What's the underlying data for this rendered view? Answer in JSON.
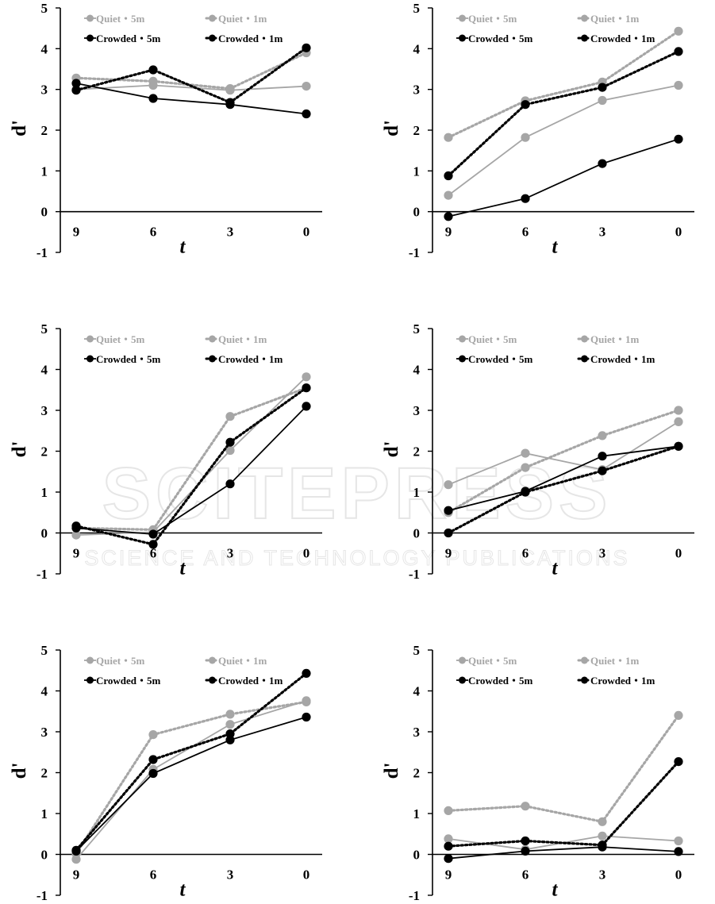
{
  "watermark": {
    "main": "SCITEPRESS",
    "sub": "SCIENCE AND TECHNOLOGY PUBLICATIONS"
  },
  "chart_data": [
    {
      "type": "line",
      "xlabel": "t",
      "ylabel": "d'",
      "categories": [
        "9",
        "6",
        "3",
        "0"
      ],
      "ylim": [
        -1,
        5
      ],
      "yticks": [
        "-1",
        "0",
        "1",
        "2",
        "3",
        "4",
        "5"
      ],
      "series": [
        {
          "name": "Quiet・5m",
          "values": [
            3.0,
            3.1,
            2.98,
            3.08
          ],
          "color": "#a6a6a6",
          "style": "solid"
        },
        {
          "name": "Quiet・1m",
          "values": [
            3.28,
            3.2,
            3.02,
            3.9
          ],
          "color": "#a6a6a6",
          "style": "dotted"
        },
        {
          "name": "Crowded・5m",
          "values": [
            3.15,
            2.78,
            2.63,
            2.4
          ],
          "color": "#000000",
          "style": "solid"
        },
        {
          "name": "Crowded・1m",
          "values": [
            2.98,
            3.48,
            2.68,
            4.02
          ],
          "color": "#000000",
          "style": "dotted"
        }
      ]
    },
    {
      "type": "line",
      "xlabel": "t",
      "ylabel": "d'",
      "categories": [
        "9",
        "6",
        "3",
        "0"
      ],
      "ylim": [
        -1,
        5
      ],
      "yticks": [
        "-1",
        "0",
        "1",
        "2",
        "3",
        "4",
        "5"
      ],
      "series": [
        {
          "name": "Quiet・5m",
          "values": [
            0.4,
            1.82,
            2.73,
            3.1
          ],
          "color": "#a6a6a6",
          "style": "solid"
        },
        {
          "name": "Quiet・1m",
          "values": [
            1.82,
            2.72,
            3.18,
            4.43
          ],
          "color": "#a6a6a6",
          "style": "dotted"
        },
        {
          "name": "Crowded・5m",
          "values": [
            -0.12,
            0.32,
            1.18,
            1.78
          ],
          "color": "#000000",
          "style": "solid"
        },
        {
          "name": "Crowded・1m",
          "values": [
            0.88,
            2.63,
            3.05,
            3.93
          ],
          "color": "#000000",
          "style": "dotted"
        }
      ]
    },
    {
      "type": "line",
      "xlabel": "t",
      "ylabel": "d'",
      "categories": [
        "9",
        "6",
        "3",
        "0"
      ],
      "ylim": [
        -1,
        5
      ],
      "yticks": [
        "-1",
        "0",
        "1",
        "2",
        "3",
        "4",
        "5"
      ],
      "series": [
        {
          "name": "Quiet・5m",
          "values": [
            -0.05,
            0.02,
            2.02,
            3.82
          ],
          "color": "#a6a6a6",
          "style": "solid"
        },
        {
          "name": "Quiet・1m",
          "values": [
            0.12,
            0.08,
            2.85,
            3.55
          ],
          "color": "#a6a6a6",
          "style": "dotted"
        },
        {
          "name": "Crowded・5m",
          "values": [
            0.12,
            -0.03,
            1.2,
            3.1
          ],
          "color": "#000000",
          "style": "solid"
        },
        {
          "name": "Crowded・1m",
          "values": [
            0.17,
            -0.28,
            2.22,
            3.55
          ],
          "color": "#000000",
          "style": "dotted"
        }
      ]
    },
    {
      "type": "line",
      "xlabel": "t",
      "ylabel": "d'",
      "categories": [
        "9",
        "6",
        "3",
        "0"
      ],
      "ylim": [
        -1,
        5
      ],
      "yticks": [
        "-1",
        "0",
        "1",
        "2",
        "3",
        "4",
        "5"
      ],
      "series": [
        {
          "name": "Quiet・5m",
          "values": [
            1.18,
            1.95,
            1.55,
            2.72
          ],
          "color": "#a6a6a6",
          "style": "solid"
        },
        {
          "name": "Quiet・1m",
          "values": [
            0.5,
            1.6,
            2.38,
            3.0
          ],
          "color": "#a6a6a6",
          "style": "dotted"
        },
        {
          "name": "Crowded・5m",
          "values": [
            0.55,
            1.02,
            1.88,
            2.12
          ],
          "color": "#000000",
          "style": "solid"
        },
        {
          "name": "Crowded・1m",
          "values": [
            0.0,
            1.0,
            1.52,
            2.12
          ],
          "color": "#000000",
          "style": "dotted"
        }
      ]
    },
    {
      "type": "line",
      "xlabel": "t",
      "ylabel": "d'",
      "categories": [
        "9",
        "6",
        "3",
        "0"
      ],
      "ylim": [
        -1,
        5
      ],
      "yticks": [
        "-1",
        "0",
        "1",
        "2",
        "3",
        "4",
        "5"
      ],
      "series": [
        {
          "name": "Quiet・5m",
          "values": [
            -0.12,
            2.08,
            3.18,
            3.76
          ],
          "color": "#a6a6a6",
          "style": "solid"
        },
        {
          "name": "Quiet・1m",
          "values": [
            0.02,
            2.93,
            3.43,
            3.73
          ],
          "color": "#a6a6a6",
          "style": "dotted"
        },
        {
          "name": "Crowded・5m",
          "values": [
            0.08,
            1.98,
            2.8,
            3.36
          ],
          "color": "#000000",
          "style": "solid"
        },
        {
          "name": "Crowded・1m",
          "values": [
            0.1,
            2.32,
            2.95,
            4.43
          ],
          "color": "#000000",
          "style": "dotted"
        }
      ]
    },
    {
      "type": "line",
      "xlabel": "t",
      "ylabel": "d'",
      "categories": [
        "9",
        "6",
        "3",
        "0"
      ],
      "ylim": [
        -1,
        5
      ],
      "yticks": [
        "-1",
        "0",
        "1",
        "2",
        "3",
        "4",
        "5"
      ],
      "series": [
        {
          "name": "Quiet・5m",
          "values": [
            0.38,
            0.12,
            0.45,
            0.33
          ],
          "color": "#a6a6a6",
          "style": "solid"
        },
        {
          "name": "Quiet・1m",
          "values": [
            1.07,
            1.18,
            0.8,
            3.4
          ],
          "color": "#a6a6a6",
          "style": "dotted"
        },
        {
          "name": "Crowded・5m",
          "values": [
            -0.1,
            0.08,
            0.18,
            0.07
          ],
          "color": "#000000",
          "style": "solid"
        },
        {
          "name": "Crowded・1m",
          "values": [
            0.2,
            0.33,
            0.23,
            2.27
          ],
          "color": "#000000",
          "style": "dotted"
        }
      ]
    }
  ]
}
